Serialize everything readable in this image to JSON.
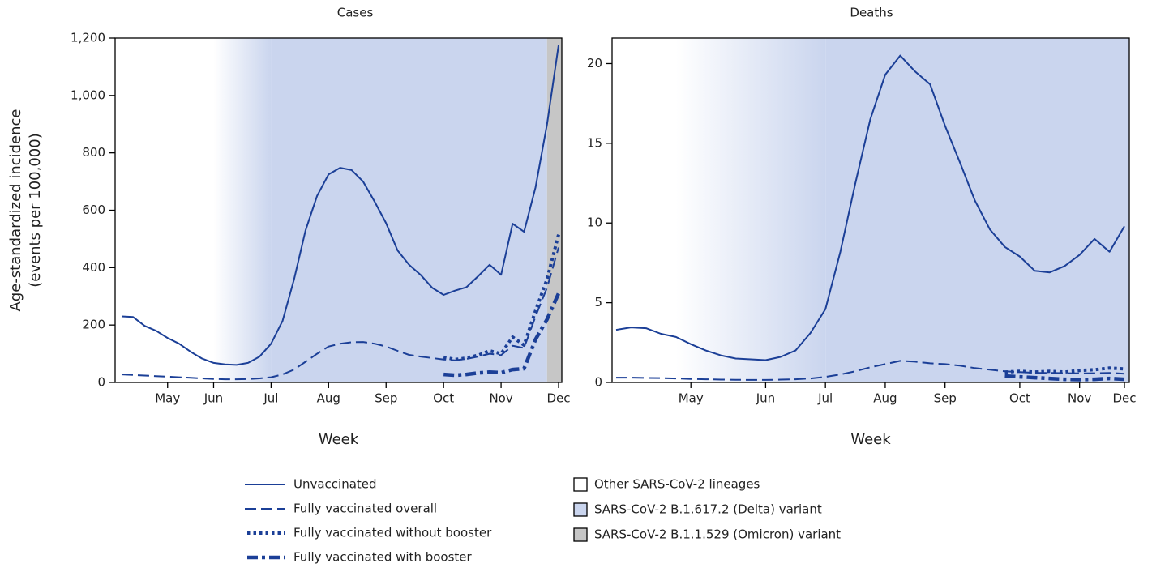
{
  "chart_data": [
    {
      "type": "line",
      "title": "Cases",
      "x_label": "Week",
      "y_label": [
        "Age-standardized incidence",
        "(events per 100,000)"
      ],
      "categories": [
        null,
        null,
        null,
        null,
        "May",
        null,
        null,
        null,
        "Jun",
        null,
        null,
        null,
        null,
        "Jul",
        null,
        null,
        null,
        null,
        "Aug",
        null,
        null,
        null,
        null,
        "Sep",
        null,
        null,
        null,
        null,
        "Oct",
        null,
        null,
        null,
        null,
        "Nov",
        null,
        null,
        null,
        null,
        "Dec"
      ],
      "ylim": [
        0,
        1200
      ],
      "yticks": [
        0,
        200,
        400,
        600,
        800,
        {
          "value": 1000,
          "label": "1,000"
        },
        {
          "value": 1200,
          "label": "1,200"
        }
      ],
      "shading": [
        {
          "period": 1,
          "fade_start": 8,
          "start": 13,
          "end": 37
        },
        {
          "period": 2,
          "start": 37,
          "end": 38
        }
      ],
      "series": [
        {
          "name": "Unvaccinated",
          "color": "#1b3f97",
          "dash": "solid",
          "values": [
            230,
            228,
            197,
            180,
            155,
            135,
            107,
            83,
            68,
            63,
            61,
            68,
            90,
            135,
            215,
            360,
            530,
            650,
            725,
            748,
            740,
            700,
            630,
            555,
            460,
            410,
            375,
            330,
            305,
            320,
            332,
            370,
            410,
            375,
            553,
            525,
            680,
            900,
            1175
          ]
        },
        {
          "name": "Fully vaccinated overall",
          "color": "#1b3f97",
          "dash": "dashed",
          "values": [
            28,
            26,
            24,
            22,
            20,
            18,
            16,
            14,
            12,
            11,
            11,
            12,
            14,
            18,
            28,
            45,
            72,
            100,
            125,
            135,
            140,
            141,
            135,
            125,
            110,
            96,
            90,
            85,
            80,
            77,
            82,
            90,
            100,
            95,
            128,
            120,
            230,
            330,
            470
          ]
        },
        {
          "name": "Fully vaccinated without booster",
          "color": "#1b3f97",
          "dash": "dotted",
          "values": [
            null,
            null,
            null,
            null,
            null,
            null,
            null,
            null,
            null,
            null,
            null,
            null,
            null,
            null,
            null,
            null,
            null,
            null,
            null,
            null,
            null,
            null,
            null,
            null,
            null,
            null,
            null,
            null,
            88,
            80,
            85,
            95,
            110,
            100,
            158,
            130,
            250,
            360,
            515
          ]
        },
        {
          "name": "Fully vaccinated with booster",
          "color": "#1b3f97",
          "dash": "dashdot",
          "values": [
            null,
            null,
            null,
            null,
            null,
            null,
            null,
            null,
            null,
            null,
            null,
            null,
            null,
            null,
            null,
            null,
            null,
            null,
            null,
            null,
            null,
            null,
            null,
            null,
            null,
            null,
            null,
            null,
            28,
            25,
            28,
            33,
            36,
            34,
            45,
            48,
            150,
            220,
            310
          ]
        }
      ]
    },
    {
      "type": "line",
      "title": "Deaths",
      "x_label": "Week",
      "categories": [
        null,
        null,
        null,
        null,
        null,
        "May",
        null,
        null,
        null,
        null,
        "Jun",
        null,
        null,
        null,
        "Jul",
        null,
        null,
        null,
        "Aug",
        null,
        null,
        null,
        "Sep",
        null,
        null,
        null,
        null,
        "Oct",
        null,
        null,
        null,
        "Nov",
        null,
        null,
        "Dec"
      ],
      "ylim": [
        0,
        21.6
      ],
      "yticks": [
        0,
        5,
        10,
        15,
        20
      ],
      "shading": [
        {
          "period": 1,
          "fade_start": 4,
          "start": 14,
          "end": 34
        }
      ],
      "series": [
        {
          "color": "#1b3f97",
          "dash": "solid",
          "values": [
            3.3,
            3.45,
            3.4,
            3.05,
            2.85,
            2.4,
            2.0,
            1.7,
            1.5,
            1.45,
            1.4,
            1.6,
            2.0,
            3.1,
            4.6,
            8.2,
            12.5,
            16.5,
            19.3,
            20.5,
            19.5,
            18.7,
            16.1,
            13.8,
            11.4,
            9.6,
            8.5,
            7.9,
            7.0,
            6.9,
            7.3,
            8.0,
            9.0,
            8.2,
            9.8
          ]
        },
        {
          "color": "#1b3f97",
          "dash": "dashed",
          "values": [
            0.3,
            0.3,
            0.28,
            0.27,
            0.25,
            0.22,
            0.2,
            0.18,
            0.17,
            0.16,
            0.16,
            0.18,
            0.2,
            0.25,
            0.35,
            0.5,
            0.7,
            0.95,
            1.15,
            1.35,
            1.3,
            1.2,
            1.15,
            1.05,
            0.9,
            0.8,
            0.7,
            0.65,
            0.6,
            0.6,
            0.58,
            0.57,
            0.58,
            0.6,
            0.55
          ]
        },
        {
          "color": "#1b3f97",
          "dash": "dotted",
          "values": [
            null,
            null,
            null,
            null,
            null,
            null,
            null,
            null,
            null,
            null,
            null,
            null,
            null,
            null,
            null,
            null,
            null,
            null,
            null,
            null,
            null,
            null,
            null,
            null,
            null,
            null,
            0.65,
            0.7,
            0.65,
            0.7,
            0.65,
            0.75,
            0.8,
            0.9,
            0.85
          ]
        },
        {
          "color": "#1b3f97",
          "dash": "dashdot",
          "values": [
            null,
            null,
            null,
            null,
            null,
            null,
            null,
            null,
            null,
            null,
            null,
            null,
            null,
            null,
            null,
            null,
            null,
            null,
            null,
            null,
            null,
            null,
            null,
            null,
            null,
            null,
            0.4,
            0.35,
            0.3,
            0.25,
            0.2,
            0.18,
            0.2,
            0.25,
            0.2
          ]
        }
      ]
    }
  ],
  "periods": [
    {
      "name": "Other SARS-CoV-2 lineages",
      "color": "#ffffff"
    },
    {
      "name": "SARS-CoV-2 B.1.617.2 (Delta) variant",
      "color": "#cad5ee"
    },
    {
      "name": "SARS-CoV-2 B.1.1.529 (Omicron) variant",
      "color": "#c6c6c6"
    }
  ]
}
